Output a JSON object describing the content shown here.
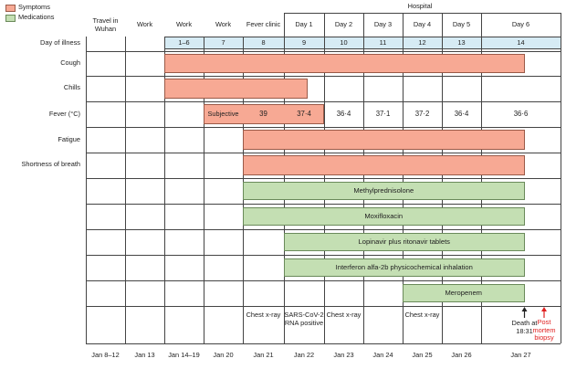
{
  "legend": {
    "symptoms": {
      "label": "Symptoms",
      "color": "#f7a994"
    },
    "medications": {
      "label": "Medications",
      "color": "#c4dfb3"
    }
  },
  "hospital_label": "Hospital",
  "columns": [
    {
      "phase": "Travel in Wuhan",
      "day": "",
      "date": "Jan 8–12"
    },
    {
      "phase": "Work",
      "day": "",
      "date": "Jan 13"
    },
    {
      "phase": "Work",
      "day": "1–6",
      "date": "Jan 14–19"
    },
    {
      "phase": "Work",
      "day": "7",
      "date": "Jan 20"
    },
    {
      "phase": "Fever clinic",
      "day": "8",
      "date": "Jan 21"
    },
    {
      "phase": "Day 1",
      "day": "9",
      "date": "Jan 22"
    },
    {
      "phase": "Day 2",
      "day": "10",
      "date": "Jan 23"
    },
    {
      "phase": "Day 3",
      "day": "11",
      "date": "Jan 24"
    },
    {
      "phase": "Day 4",
      "day": "12",
      "date": "Jan 25"
    },
    {
      "phase": "Day 5",
      "day": "13",
      "date": "Jan 26"
    },
    {
      "phase": "Day 6",
      "day": "14",
      "date": "Jan 27"
    }
  ],
  "row_labels": {
    "day_of_illness": "Day of illness",
    "cough": "Cough",
    "chills": "Chills",
    "fever": "Fever (°C)",
    "fatigue": "Fatigue",
    "sob": "Shortness of breath"
  },
  "symptom_bars": [
    {
      "row": "cough",
      "from_col": 2,
      "to_col": 10
    },
    {
      "row": "chills",
      "from_col": 2,
      "to_col": 5
    },
    {
      "row": "fatigue",
      "from_col": 4,
      "to_col": 10
    },
    {
      "row": "sob",
      "from_col": 4,
      "to_col": 10
    }
  ],
  "fever": {
    "subjective": {
      "text": "Subjective",
      "col": 3
    },
    "temps": [
      {
        "col": 4,
        "value": "39"
      },
      {
        "col": 5,
        "value": "37·4"
      },
      {
        "col": 6,
        "value": "36·4"
      },
      {
        "col": 7,
        "value": "37·1"
      },
      {
        "col": 8,
        "value": "37·2"
      },
      {
        "col": 9,
        "value": "36·4"
      },
      {
        "col": 10,
        "value": "36·6"
      }
    ]
  },
  "medications": [
    {
      "name": "Methylprednisolone",
      "from_col": 4,
      "to_col": 10
    },
    {
      "name": "Moxifloxacin",
      "from_col": 4,
      "to_col": 10
    },
    {
      "name": "Lopinavir plus ritonavir tablets",
      "from_col": 5,
      "to_col": 10
    },
    {
      "name": "Interferon alfa-2b physicochemical inhalation",
      "from_col": 5,
      "to_col": 10
    },
    {
      "name": "Meropenem",
      "from_col": 8,
      "to_col": 10
    }
  ],
  "events": [
    {
      "col": 4,
      "text": "Chest x-ray"
    },
    {
      "col": 5,
      "text": "SARS-CoV-2 RNA positive"
    },
    {
      "col": 6,
      "text": "Chest x-ray"
    },
    {
      "col": 8,
      "text": "Chest x-ray"
    }
  ],
  "death": {
    "text": "Death at 18:31",
    "arrow_color": "#222222"
  },
  "biopsy": {
    "text": "Post mortem biopsy",
    "color": "#e02020"
  }
}
